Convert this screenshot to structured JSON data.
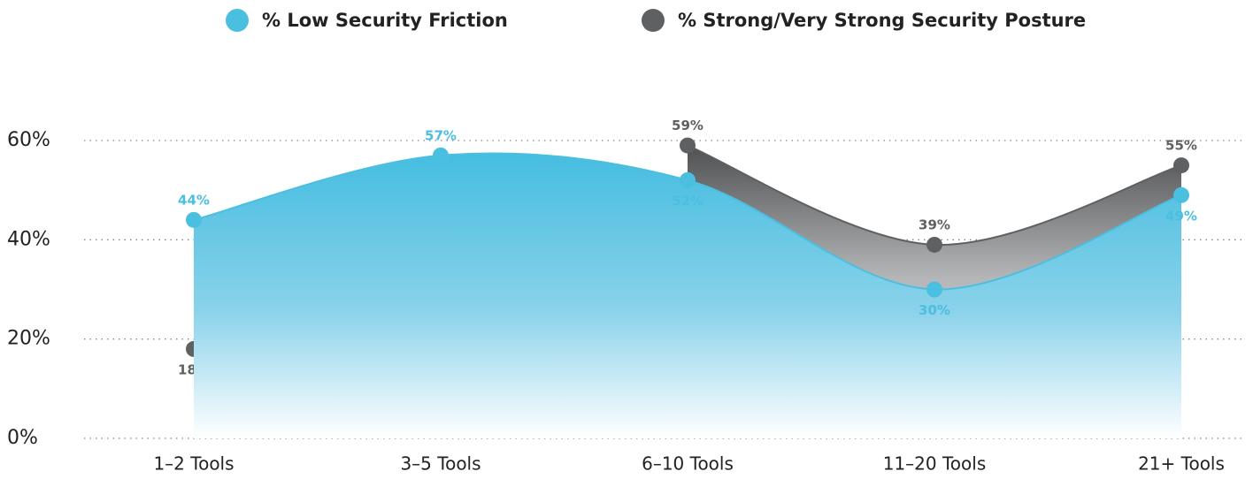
{
  "chart_data": {
    "type": "area",
    "categories": [
      "1–2 Tools",
      "3–5 Tools",
      "6–10 Tools",
      "11–20 Tools",
      "21+ Tools"
    ],
    "series": [
      {
        "name": "% Low Security Friction",
        "color": "#4bbfe0",
        "values": [
          44,
          57,
          52,
          30,
          49
        ],
        "value_labels": [
          "44%",
          "57%",
          "52%",
          "30%",
          "49%"
        ]
      },
      {
        "name": "% Strong/Very Strong Security Posture",
        "color": "#5f6062",
        "values": [
          18,
          null,
          59,
          39,
          55
        ],
        "value_labels": [
          "18%",
          null,
          "59%",
          "39%",
          "55%"
        ]
      }
    ],
    "ylim": [
      0,
      60
    ],
    "yticks": [
      {
        "value": 0,
        "label": "0%"
      },
      {
        "value": 20,
        "label": "20%"
      },
      {
        "value": 40,
        "label": "40%"
      },
      {
        "value": 60,
        "label": "60%"
      }
    ],
    "grid": true
  }
}
